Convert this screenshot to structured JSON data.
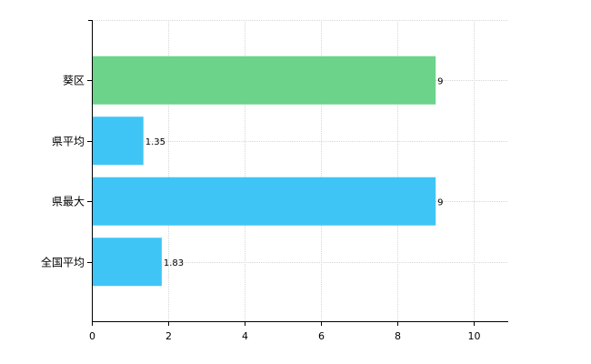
{
  "chart_data": {
    "type": "bar",
    "orientation": "horizontal",
    "categories": [
      "葵区",
      "県平均",
      "県最大",
      "全国平均"
    ],
    "values": [
      9,
      1.35,
      9,
      1.83
    ],
    "value_labels": [
      "9",
      "1.35",
      "9",
      "1.83"
    ],
    "bar_colors": [
      "#6bd38a",
      "#3ec5f5",
      "#3ec5f5",
      "#3ec5f5"
    ],
    "xlim": [
      0,
      10.9
    ],
    "x_ticks": [
      0,
      2,
      4,
      6,
      8,
      10
    ],
    "x_tick_labels": [
      "0",
      "2",
      "4",
      "6",
      "8",
      "10"
    ],
    "grid": true,
    "title": "",
    "xlabel": "",
    "ylabel": ""
  }
}
